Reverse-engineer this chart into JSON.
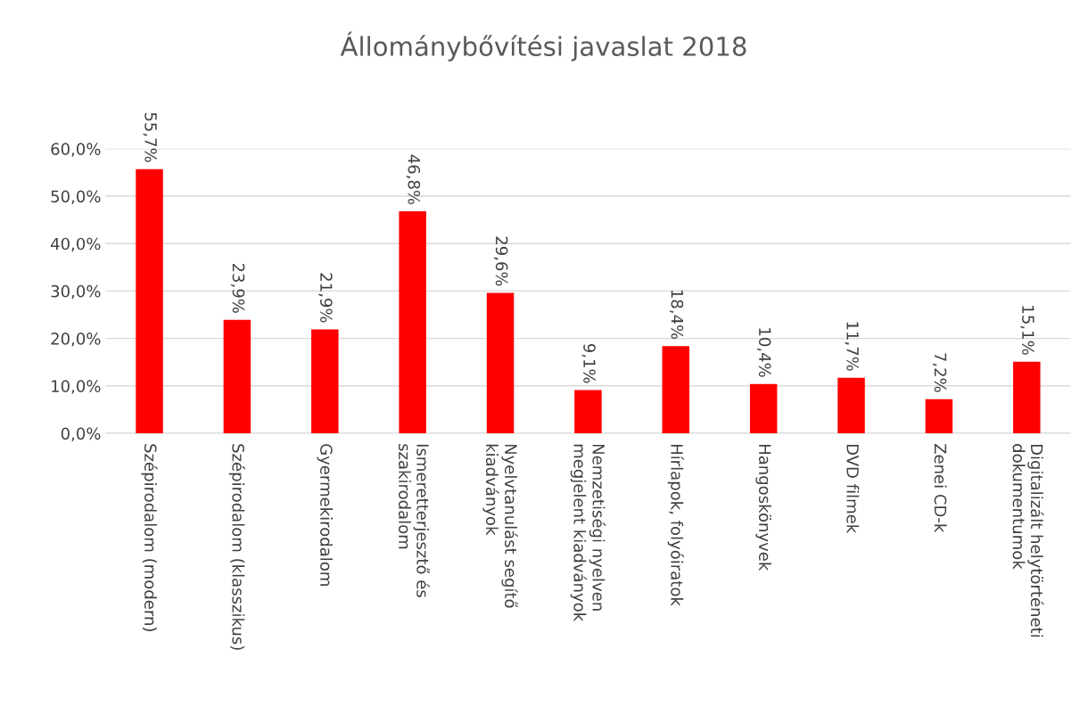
{
  "chart_data": {
    "type": "bar",
    "title": "Állománybővítési javaslat 2018",
    "categories": [
      "Szépirodalom (modern)",
      "Szépirodalom (klasszikus)",
      "Gyermekirodalom",
      "Ismeretterjesztő és\nszakirodalom",
      "Nyelvtanulást segítő\nkiadványok",
      "Nemzetiségi nyelven\nmegjelent kiadványok",
      "Hírlapok, folyóiratok",
      "Hangoskönyvek",
      "DVD filmek",
      "Zenei CD-k",
      "Digitalizált helytörténeti\ndokumentumok"
    ],
    "values": [
      55.7,
      23.9,
      21.9,
      46.8,
      29.6,
      9.1,
      18.4,
      10.4,
      11.7,
      7.2,
      15.1
    ],
    "value_labels": [
      "55,7%",
      "23,9%",
      "21,9%",
      "46,8%",
      "29,6%",
      "9,1%",
      "18,4%",
      "10,4%",
      "11,7%",
      "7,2%",
      "15,1%"
    ],
    "color": "#ff0000",
    "ylim": [
      0,
      60
    ],
    "yticks": [
      {
        "value": 0,
        "label": "0,0%"
      },
      {
        "value": 10,
        "label": "10,0%"
      },
      {
        "value": 20,
        "label": "20,0%"
      },
      {
        "value": 30,
        "label": "30,0%"
      },
      {
        "value": 40,
        "label": "40,0%"
      },
      {
        "value": 50,
        "label": "50,0%"
      },
      {
        "value": 60,
        "label": "60,0%"
      }
    ],
    "grid": "y",
    "legend": false
  }
}
